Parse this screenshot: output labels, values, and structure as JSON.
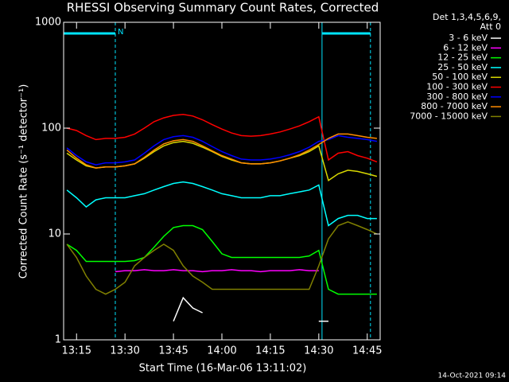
{
  "chart_data": {
    "type": "line",
    "title": "RHESSI Observing Summary Count Rates, Corrected",
    "x_label": "Start Time (16-Mar-06 13:11:02)",
    "y_label": "Corrected Count Rate (s⁻¹ detector⁻¹)",
    "footer": "14-Oct-2021 09:14",
    "legend_header": [
      "Det 1,3,4,5,6,9,",
      "Att 0"
    ],
    "log_y": true,
    "ylim": [
      1,
      1000
    ],
    "yticks": [
      1,
      10,
      100,
      1000
    ],
    "xlim": [
      "13:11",
      "14:49"
    ],
    "xticks": [
      "13:15",
      "13:30",
      "13:45",
      "14:00",
      "14:15",
      "14:30",
      "14:45"
    ],
    "periods": [
      {
        "start": "13:11",
        "end": "13:27",
        "label": "N",
        "color": "#00e5ff"
      },
      {
        "start": "14:31",
        "end": "14:46",
        "color": "#00e5ff"
      }
    ],
    "x": [
      "13:12",
      "13:15",
      "13:18",
      "13:21",
      "13:24",
      "13:27",
      "13:30",
      "13:33",
      "13:36",
      "13:39",
      "13:42",
      "13:45",
      "13:48",
      "13:51",
      "13:54",
      "13:57",
      "14:00",
      "14:03",
      "14:06",
      "14:09",
      "14:12",
      "14:15",
      "14:18",
      "14:21",
      "14:24",
      "14:27",
      "14:30",
      "14:33",
      "14:36",
      "14:39",
      "14:42",
      "14:45",
      "14:48"
    ],
    "series": [
      {
        "name": "3 - 6 keV",
        "color": "#ffffff",
        "values": [
          null,
          null,
          null,
          null,
          null,
          null,
          null,
          null,
          null,
          null,
          null,
          1.5,
          2.5,
          2,
          1.8,
          null,
          null,
          null,
          null,
          null,
          null,
          null,
          null,
          null,
          null,
          null,
          1.5,
          1.5,
          null,
          null,
          null,
          null,
          null
        ]
      },
      {
        "name": "6 - 12 keV",
        "color": "#ff00ff",
        "values": [
          null,
          null,
          null,
          null,
          null,
          4.4,
          4.5,
          4.5,
          4.6,
          4.5,
          4.5,
          4.6,
          4.5,
          4.5,
          4.4,
          4.5,
          4.5,
          4.6,
          4.5,
          4.5,
          4.4,
          4.5,
          4.5,
          4.5,
          4.6,
          4.5,
          4.5,
          null,
          null,
          null,
          null,
          null,
          null
        ]
      },
      {
        "name": "12 - 25 keV",
        "color": "#00ff00",
        "values": [
          8,
          7,
          5.5,
          5.5,
          5.5,
          5.5,
          5.5,
          5.6,
          6,
          7.5,
          9.5,
          11.5,
          12,
          12,
          11,
          8.5,
          6.5,
          6,
          6,
          6,
          6,
          6,
          6,
          6,
          6,
          6.2,
          7,
          3,
          2.7,
          2.7,
          2.7,
          2.7,
          2.7
        ]
      },
      {
        "name": "25 - 50 keV",
        "color": "#00ffff",
        "values": [
          26,
          22,
          18,
          21,
          22,
          22,
          22,
          23,
          24,
          26,
          28,
          30,
          31,
          30,
          28,
          26,
          24,
          23,
          22,
          22,
          22,
          23,
          23,
          24,
          25,
          26,
          29,
          12,
          14,
          15,
          15,
          14,
          14
        ]
      },
      {
        "name": "50 - 100 keV",
        "color": "#d8d800",
        "values": [
          58,
          50,
          44,
          42,
          43,
          43,
          44,
          46,
          52,
          60,
          68,
          73,
          75,
          72,
          66,
          60,
          54,
          50,
          47,
          46,
          46,
          47,
          49,
          52,
          55,
          60,
          68,
          32,
          37,
          40,
          39,
          37,
          35
        ]
      },
      {
        "name": "100 - 300 keV",
        "color": "#ff0000",
        "values": [
          100,
          95,
          85,
          78,
          80,
          80,
          82,
          88,
          100,
          115,
          125,
          132,
          135,
          130,
          120,
          108,
          98,
          90,
          85,
          84,
          85,
          88,
          92,
          98,
          105,
          115,
          128,
          50,
          58,
          60,
          55,
          52,
          48
        ]
      },
      {
        "name": "300 - 800 keV",
        "color": "#0000ff",
        "values": [
          65,
          55,
          48,
          45,
          47,
          47,
          48,
          50,
          58,
          68,
          78,
          83,
          85,
          82,
          75,
          67,
          60,
          55,
          51,
          50,
          50,
          51,
          53,
          56,
          60,
          66,
          75,
          78,
          85,
          82,
          80,
          78,
          75
        ]
      },
      {
        "name": "800 - 7000 keV",
        "color": "#ff8c00",
        "values": [
          62,
          52,
          45,
          42,
          43,
          43,
          44,
          46,
          53,
          62,
          71,
          76,
          78,
          75,
          68,
          61,
          55,
          51,
          47,
          46,
          46,
          47,
          49,
          52,
          56,
          62,
          70,
          80,
          88,
          88,
          85,
          82,
          80
        ]
      },
      {
        "name": "7000 - 15000 keV",
        "color": "#808000",
        "values": [
          8,
          6,
          4,
          3,
          2.7,
          3,
          3.5,
          5,
          6,
          7,
          8,
          7,
          5,
          4,
          3.5,
          3,
          3,
          3,
          3,
          3,
          3,
          3,
          3,
          3,
          3,
          3,
          5,
          9,
          12,
          13,
          12,
          11,
          10
        ]
      }
    ]
  }
}
